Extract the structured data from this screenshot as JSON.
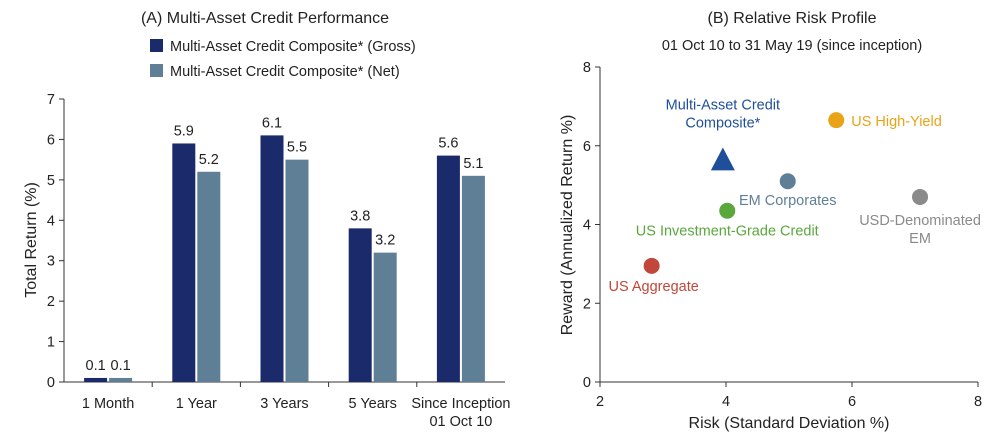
{
  "chart_data": [
    {
      "type": "bar",
      "title": "(A) Multi-Asset Credit Performance",
      "xlabel": "",
      "ylabel": "Total Return (%)",
      "ylim": [
        0,
        7
      ],
      "yticks": [
        "0",
        "1",
        "2",
        "3",
        "4",
        "5",
        "6",
        "7"
      ],
      "categories": [
        "1 Month",
        "1 Year",
        "3 Years",
        "5 Years",
        "Since Inception 01 Oct 10"
      ],
      "category_lines": [
        [
          "1 Month"
        ],
        [
          "1 Year"
        ],
        [
          "3 Years"
        ],
        [
          "5 Years"
        ],
        [
          "Since Inception",
          "01 Oct 10"
        ]
      ],
      "legend_position": "top",
      "grid": false,
      "series": [
        {
          "name": "Multi-Asset Credit Composite* (Gross)",
          "color": "#1b2a6b",
          "values": [
            0.1,
            5.9,
            6.1,
            3.8,
            5.6
          ],
          "labels": [
            "0.1",
            "5.9",
            "6.1",
            "3.8",
            "5.6"
          ]
        },
        {
          "name": "Multi-Asset Credit Composite* (Net)",
          "color": "#5f7f96",
          "values": [
            0.1,
            5.2,
            5.5,
            3.2,
            5.1
          ],
          "labels": [
            "0.1",
            "5.2",
            "5.5",
            "3.2",
            "5.1"
          ]
        }
      ]
    },
    {
      "type": "scatter",
      "title": "(B) Relative Risk Profile",
      "subtitle": "01 Oct 10 to 31 May 19 (since inception)",
      "xlabel": "Risk (Standard Deviation %)",
      "ylabel": "Reward (Annualized Return %)",
      "xlim": [
        2,
        8
      ],
      "ylim": [
        0,
        8
      ],
      "xticks": [
        "2",
        "4",
        "6",
        "8"
      ],
      "yticks": [
        "0",
        "2",
        "4",
        "6",
        "8"
      ],
      "grid": false,
      "points": [
        {
          "label_lines": [
            "Multi-Asset Credit",
            "Composite*"
          ],
          "x": 3.95,
          "y": 5.65,
          "shape": "triangle",
          "color": "#1f4f9a"
        },
        {
          "label_lines": [
            "US High-Yield"
          ],
          "x": 5.75,
          "y": 6.65,
          "shape": "circle",
          "color": "#e8a317"
        },
        {
          "label_lines": [
            "EM Corporates"
          ],
          "x": 4.98,
          "y": 5.1,
          "shape": "circle",
          "color": "#5f7f96"
        },
        {
          "label_lines": [
            "USD-Denominated",
            "EM"
          ],
          "x": 7.08,
          "y": 4.7,
          "shape": "circle",
          "color": "#8a8a8a"
        },
        {
          "label_lines": [
            "US Investment-Grade Credit"
          ],
          "x": 4.02,
          "y": 4.35,
          "shape": "circle",
          "color": "#5aa83c"
        },
        {
          "label_lines": [
            "US Aggregate"
          ],
          "x": 2.82,
          "y": 2.95,
          "shape": "circle",
          "color": "#c0473a"
        }
      ]
    }
  ]
}
